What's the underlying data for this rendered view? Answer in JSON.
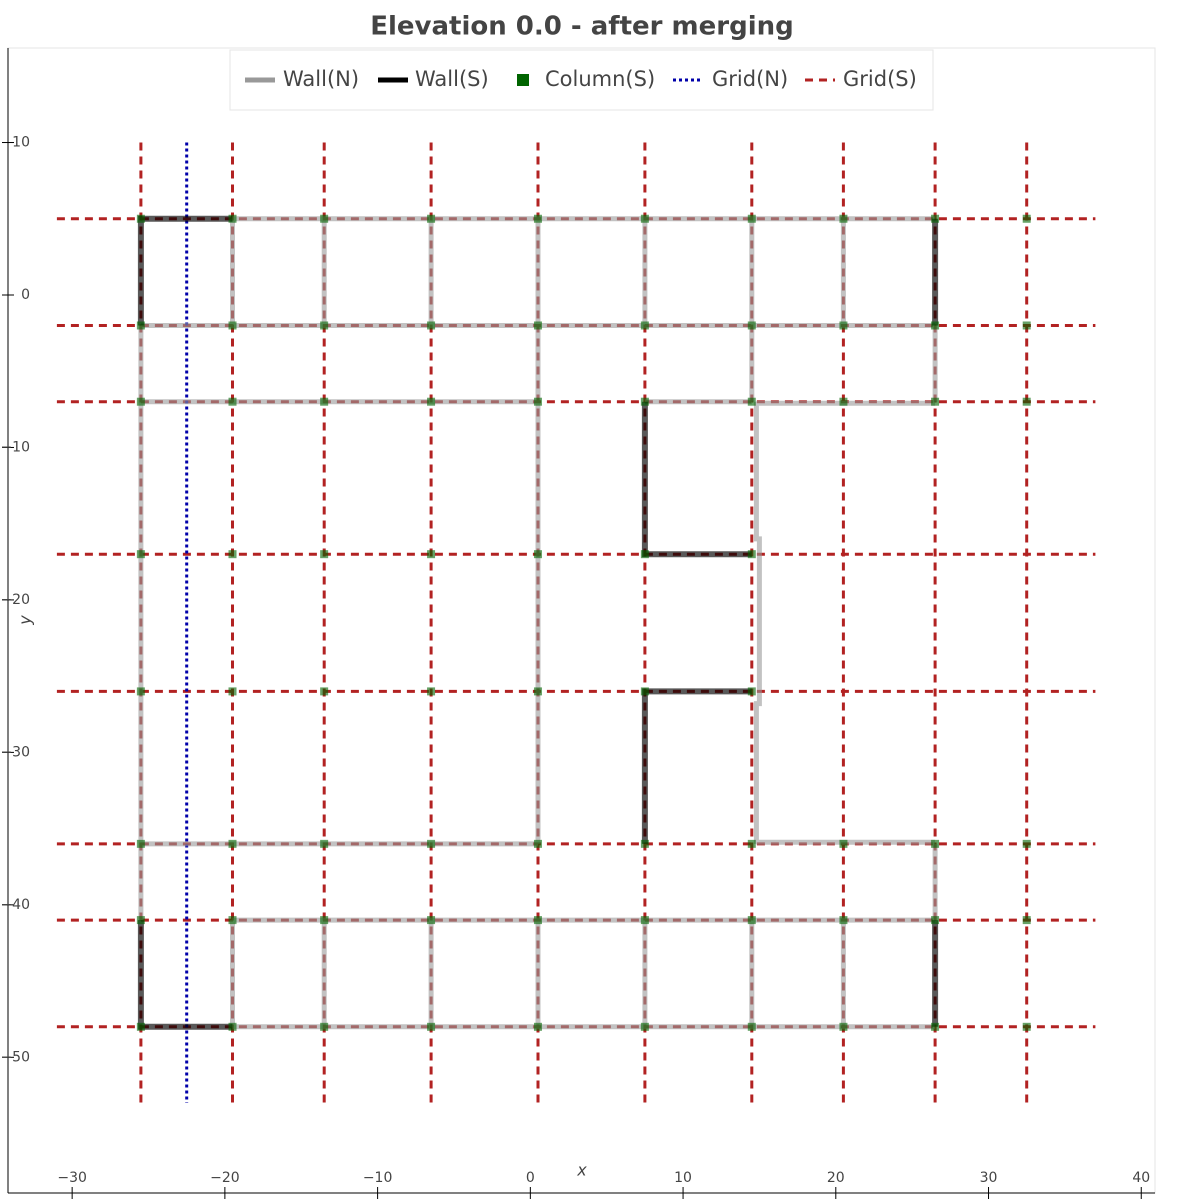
{
  "chart_data": {
    "type": "line",
    "title": "Elevation 0.0 - after merging",
    "xlabel": "x",
    "ylabel": "y",
    "xlim": [
      -34.2,
      40.9
    ],
    "ylim": [
      -58.9,
      16.2
    ],
    "xticks": [
      {
        "value": -30,
        "label": "−30"
      },
      {
        "value": -20,
        "label": "−20"
      },
      {
        "value": -10,
        "label": "−10"
      },
      0,
      10,
      20,
      30,
      40
    ],
    "yticks": [
      10,
      0,
      {
        "value": -10,
        "label": "−10"
      },
      {
        "value": -20,
        "label": "−20"
      },
      {
        "value": -30,
        "label": "−30"
      },
      {
        "value": -40,
        "label": "−40"
      },
      {
        "value": -50,
        "label": "−50"
      }
    ],
    "series": [
      {
        "name": "Wall(N)",
        "color": "#999999",
        "style": "solid",
        "x": [
          -19.5,
          26.5,
          null,
          -25.5,
          26.5,
          null,
          -25.5,
          0.5,
          null,
          7.5,
          14.5,
          null,
          14.8,
          26.5,
          null,
          -25.5,
          0.5,
          null,
          14.8,
          26.5,
          null,
          -19.5,
          26.5,
          null,
          -19.5,
          26.5,
          null,
          -25.5,
          -25.5,
          null,
          -19.5,
          -19.5,
          null,
          -19.5,
          -19.5,
          null,
          -13.5,
          -13.5,
          null,
          -13.5,
          -13.5,
          null,
          -6.5,
          -6.5,
          null,
          -6.5,
          -6.5,
          null,
          0.5,
          0.5,
          null,
          0.5,
          0.5,
          null,
          7.5,
          7.5,
          null,
          7.5,
          7.5,
          null,
          14.5,
          14.5,
          null,
          14.5,
          14.5,
          null,
          14.8,
          14.8,
          15,
          15,
          14.8,
          14.8,
          null,
          20.5,
          20.5,
          null,
          20.5,
          20.5,
          null,
          26.5,
          26.5,
          null,
          26.5,
          26.5
        ],
        "y": [
          5,
          5,
          null,
          -2,
          -2,
          null,
          -7,
          -7,
          null,
          -7,
          -7,
          null,
          -7.1,
          -7.1,
          null,
          -36,
          -36,
          null,
          -35.9,
          -35.9,
          null,
          -41,
          -41,
          null,
          -48,
          -48,
          null,
          -2,
          -41,
          null,
          5,
          -2,
          null,
          -41,
          -48,
          null,
          5,
          -2,
          null,
          -41,
          -48,
          null,
          5,
          -2,
          null,
          -41,
          -48,
          null,
          5,
          -36,
          null,
          -41,
          -48,
          null,
          5,
          -2,
          null,
          -41,
          -48,
          null,
          5,
          -7,
          null,
          -41,
          -48,
          null,
          -7,
          -16,
          -16,
          -26.8,
          -26.8,
          -36,
          null,
          5,
          -2,
          null,
          -41,
          -48,
          null,
          -2,
          -7,
          null,
          -36,
          -41
        ]
      },
      {
        "name": "Wall(S)",
        "color": "#000000",
        "style": "solid",
        "x": [
          -25.5,
          -25.5,
          -19.5,
          null,
          26.5,
          26.5,
          null,
          7.5,
          7.5,
          14.5,
          null,
          14.5,
          7.5,
          7.5,
          null,
          -25.5,
          -25.5,
          -19.5,
          null,
          26.5,
          26.5
        ],
        "y": [
          -2,
          5,
          5,
          null,
          5,
          -2,
          null,
          -7,
          -17,
          -17,
          null,
          -26,
          -26,
          -36,
          null,
          -41,
          -48,
          -48,
          null,
          -41,
          -48
        ]
      },
      {
        "name": "Column(S)",
        "color": "#006400",
        "style": "marker",
        "x": [
          -25.5,
          -19.5,
          -13.5,
          -6.5,
          0.5,
          7.5,
          14.5,
          20.5,
          26.5,
          32.5,
          -25.5,
          -19.5,
          -13.5,
          -6.5,
          0.5,
          7.5,
          14.5,
          20.5,
          26.5,
          32.5,
          -25.5,
          -19.5,
          -13.5,
          -6.5,
          0.5,
          7.5,
          14.5,
          20.5,
          26.5,
          32.5,
          -25.5,
          -19.5,
          -13.5,
          -6.5,
          0.5,
          7.5,
          14.5,
          -25.5,
          -19.5,
          -13.5,
          -6.5,
          0.5,
          7.5,
          14.5,
          -25.5,
          -19.5,
          -13.5,
          -6.5,
          0.5,
          7.5,
          14.5,
          20.5,
          26.5,
          32.5,
          -25.5,
          -19.5,
          -13.5,
          -6.5,
          0.5,
          7.5,
          14.5,
          20.5,
          26.5,
          32.5,
          -25.5,
          -19.5,
          -13.5,
          -6.5,
          0.5,
          7.5,
          14.5,
          20.5,
          26.5,
          32.5
        ],
        "y": [
          5,
          5,
          5,
          5,
          5,
          5,
          5,
          5,
          5,
          5,
          -2,
          -2,
          -2,
          -2,
          -2,
          -2,
          -2,
          -2,
          -2,
          -2,
          -7,
          -7,
          -7,
          -7,
          -7,
          -7,
          -7,
          -7,
          -7,
          -7,
          -17,
          -17,
          -17,
          -17,
          -17,
          -17,
          -17,
          -26,
          -26,
          -26,
          -26,
          -26,
          -26,
          -26,
          -36,
          -36,
          -36,
          -36,
          -36,
          -36,
          -36,
          -36,
          -36,
          -36,
          -41,
          -41,
          -41,
          -41,
          -41,
          -41,
          -41,
          -41,
          -41,
          -41,
          -48,
          -48,
          -48,
          -48,
          -48,
          -48,
          -48,
          -48,
          -48,
          -48
        ]
      },
      {
        "name": "Grid(N)",
        "color": "#0000aa",
        "style": "dotted",
        "x": [
          -22.5,
          -22.5
        ],
        "y": [
          10,
          -53
        ]
      },
      {
        "name": "Grid(S)",
        "color": "#b22222",
        "style": "dashed",
        "x": [
          -25.5,
          -25.5,
          null,
          -19.5,
          -19.5,
          null,
          -13.5,
          -13.5,
          null,
          -6.5,
          -6.5,
          null,
          0.5,
          0.5,
          null,
          7.5,
          7.5,
          null,
          14.5,
          14.5,
          null,
          20.5,
          20.5,
          null,
          26.5,
          26.5,
          null,
          32.5,
          32.5,
          null,
          -31,
          37,
          null,
          -31,
          37,
          null,
          -31,
          37,
          null,
          -31,
          37,
          null,
          -31,
          37,
          null,
          -31,
          37,
          null,
          -31,
          37,
          null,
          -31,
          37
        ],
        "y": [
          10,
          -53,
          null,
          10,
          -53,
          null,
          10,
          -53,
          null,
          10,
          -53,
          null,
          10,
          -53,
          null,
          10,
          -53,
          null,
          10,
          -53,
          null,
          10,
          -53,
          null,
          10,
          -53,
          null,
          10,
          -53,
          null,
          5,
          5,
          null,
          -2,
          -2,
          null,
          -7,
          -7,
          null,
          -17,
          -17,
          null,
          -26,
          -26,
          null,
          -36,
          -36,
          null,
          -41,
          -41,
          null,
          -48,
          -48
        ]
      }
    ]
  }
}
